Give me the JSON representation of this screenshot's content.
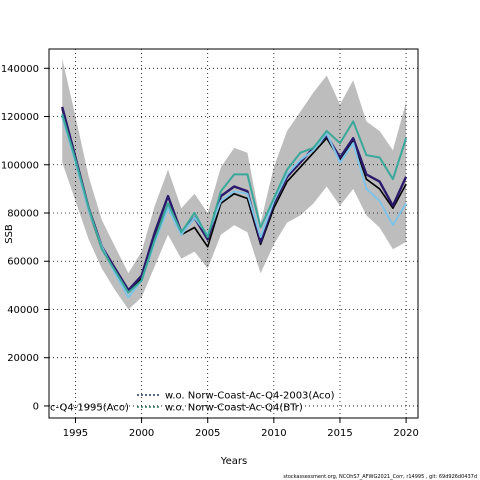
{
  "footer": "stockassessment.org, NCOhS7_AFWG2021_Corr, r14995 , git: 69d926d0437d",
  "chart_data": {
    "type": "line",
    "title": "",
    "xlabel": "Years",
    "ylabel": "SSB",
    "xlim": [
      1993,
      2020.9
    ],
    "ylim": [
      -5000,
      148000
    ],
    "x_ticks": [
      1995,
      2000,
      2005,
      2010,
      2015,
      2020
    ],
    "y_ticks": [
      0,
      20000,
      40000,
      60000,
      80000,
      100000,
      120000,
      140000
    ],
    "grid": true,
    "grid_style": "dotted",
    "legend_placement": "bottom-center",
    "x": [
      1994,
      1995,
      1996,
      1997,
      1998,
      1999,
      2000,
      2001,
      2002,
      2003,
      2004,
      2005,
      2006,
      2007,
      2008,
      2009,
      2010,
      2011,
      2012,
      2013,
      2014,
      2015,
      2016,
      2017,
      2018,
      2019,
      2020
    ],
    "band": {
      "color": "#bdbdbd",
      "upper": [
        144000,
        120000,
        95000,
        77000,
        66000,
        55000,
        64000,
        83000,
        98000,
        82000,
        88000,
        80000,
        99000,
        107000,
        105000,
        76000,
        99000,
        114000,
        122000,
        130000,
        137000,
        125000,
        135000,
        118000,
        114000,
        106000,
        126000
      ],
      "lower": [
        101000,
        85000,
        69000,
        57000,
        48000,
        40000,
        45000,
        58000,
        71000,
        61000,
        64000,
        57000,
        71000,
        75000,
        72000,
        55000,
        67000,
        76000,
        79000,
        84000,
        91000,
        83000,
        90000,
        79000,
        74000,
        65000,
        68000
      ]
    },
    "series": [
      {
        "name": "",
        "color": "#000000",
        "dash": "solid",
        "width": 1.6,
        "values": [
          123000,
          102000,
          81000,
          65000,
          56000,
          47000,
          53000,
          70000,
          84000,
          71000,
          74000,
          66000,
          84000,
          88000,
          86000,
          67000,
          82000,
          93000,
          99000,
          105000,
          111000,
          102000,
          110000,
          94000,
          90000,
          82000,
          92000
        ]
      },
      {
        "name": "",
        "color": "#2b1a6b",
        "dash": "solid",
        "width": 2.4,
        "values": [
          124000,
          103000,
          82000,
          66000,
          57000,
          48000,
          54000,
          72000,
          87000,
          72000,
          78000,
          69000,
          87000,
          91000,
          89000,
          68000,
          84000,
          95000,
          101000,
          107000,
          112000,
          103000,
          111000,
          96000,
          93000,
          83000,
          95000
        ]
      },
      {
        "name": "",
        "color": "#7fc4e8",
        "dash": "solid",
        "width": 2.0,
        "values": [
          120000,
          101000,
          81000,
          66000,
          55000,
          45000,
          52000,
          68000,
          82000,
          71000,
          78000,
          71000,
          85000,
          89000,
          88000,
          70000,
          85000,
          96000,
          102000,
          106000,
          113000,
          101000,
          109000,
          90000,
          85000,
          75000,
          84000
        ]
      },
      {
        "name": "",
        "color": "#3aa89a",
        "dash": "solid",
        "width": 2.0,
        "values": [
          121000,
          102000,
          82000,
          65000,
          56000,
          47000,
          52000,
          69000,
          84000,
          72000,
          80000,
          70000,
          89000,
          96000,
          96000,
          74000,
          86000,
          98000,
          105000,
          107000,
          114000,
          109000,
          118000,
          104000,
          103000,
          94000,
          111000
        ]
      }
    ],
    "legend": [
      {
        "label": "w.o. Norw-Coast-Ac-Q4-2003(Aco)",
        "color": "#1f3a5a",
        "dash": "dotted"
      },
      {
        "label": "w.o. Norw-Coast-Ac-Q4(BTr)",
        "color": "#2e7a5e",
        "dash": "dotted"
      },
      {
        "label": "c-Q4-1995(Aco)",
        "color": "#3aa89a",
        "dash": "solid"
      }
    ]
  }
}
